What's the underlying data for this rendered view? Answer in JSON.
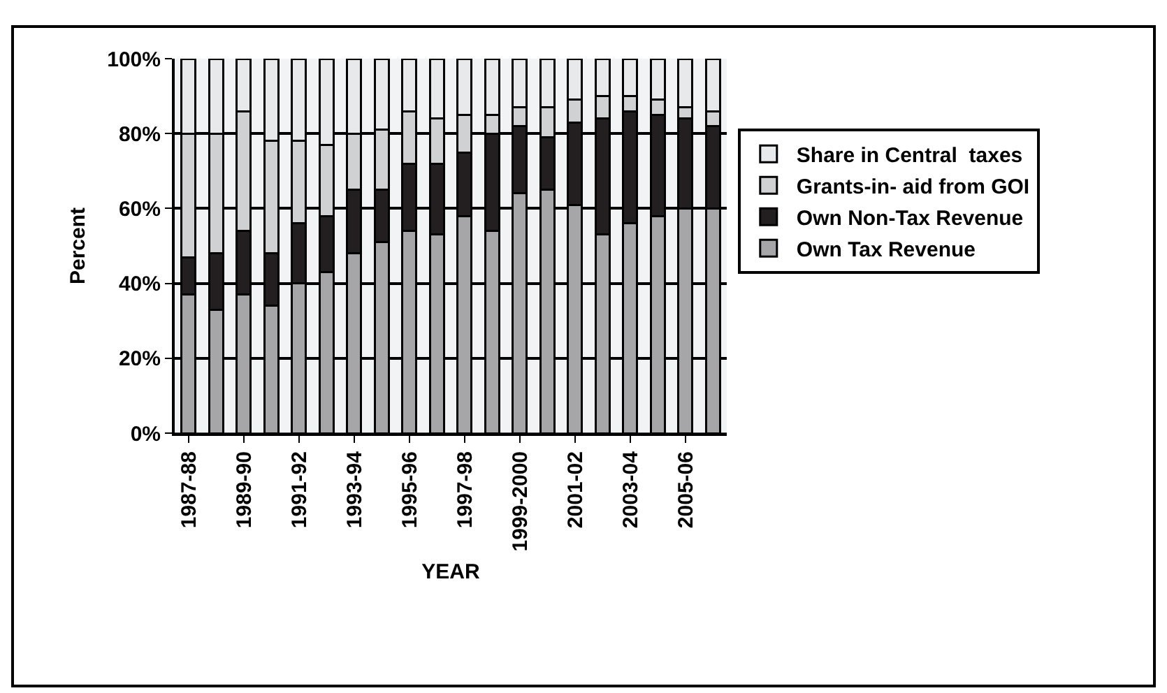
{
  "chart_data": {
    "type": "bar",
    "stacked": true,
    "xlabel": "YEAR",
    "ylabel": "Percent",
    "categories": [
      "1987-88",
      null,
      "1989-90",
      null,
      "1991-92",
      null,
      "1993-94",
      null,
      "1995-96",
      null,
      "1997-98",
      null,
      "1999-2000",
      null,
      "2001-02",
      null,
      "2003-04",
      null,
      "2005-06",
      null
    ],
    "series": [
      {
        "name": "Own Tax Revenue",
        "color": "#a6a6a8",
        "values": [
          37,
          33,
          37,
          34,
          40,
          43,
          48,
          51,
          54,
          53,
          58,
          54,
          64,
          65,
          61,
          53,
          56,
          58,
          60,
          60
        ]
      },
      {
        "name": "Own Non-Tax Revenue",
        "color": "#231f20",
        "values": [
          10,
          15,
          17,
          14,
          16,
          15,
          17,
          14,
          18,
          19,
          17,
          26,
          18,
          14,
          22,
          31,
          30,
          27,
          24,
          22
        ]
      },
      {
        "name": "Grants-in- aid from GOI",
        "color": "#d0d1d3",
        "values": [
          33,
          32,
          32,
          30,
          22,
          19,
          15,
          16,
          14,
          12,
          10,
          5,
          5,
          8,
          6,
          6,
          4,
          4,
          3,
          4
        ]
      },
      {
        "name": "Share in Central  taxes",
        "color": "#e8e9eb",
        "values": [
          20,
          20,
          14,
          22,
          22,
          23,
          20,
          19,
          14,
          16,
          15,
          15,
          13,
          13,
          11,
          10,
          10,
          11,
          13,
          14
        ]
      }
    ],
    "ylim": [
      0,
      100
    ],
    "yticks": [
      {
        "value": 0,
        "label": "0%"
      },
      {
        "value": 20,
        "label": "20%"
      },
      {
        "value": 40,
        "label": "40%"
      },
      {
        "value": 60,
        "label": "60%"
      },
      {
        "value": 80,
        "label": "80%"
      },
      {
        "value": 100,
        "label": "100%"
      }
    ],
    "grid": "y",
    "legend": "right"
  }
}
